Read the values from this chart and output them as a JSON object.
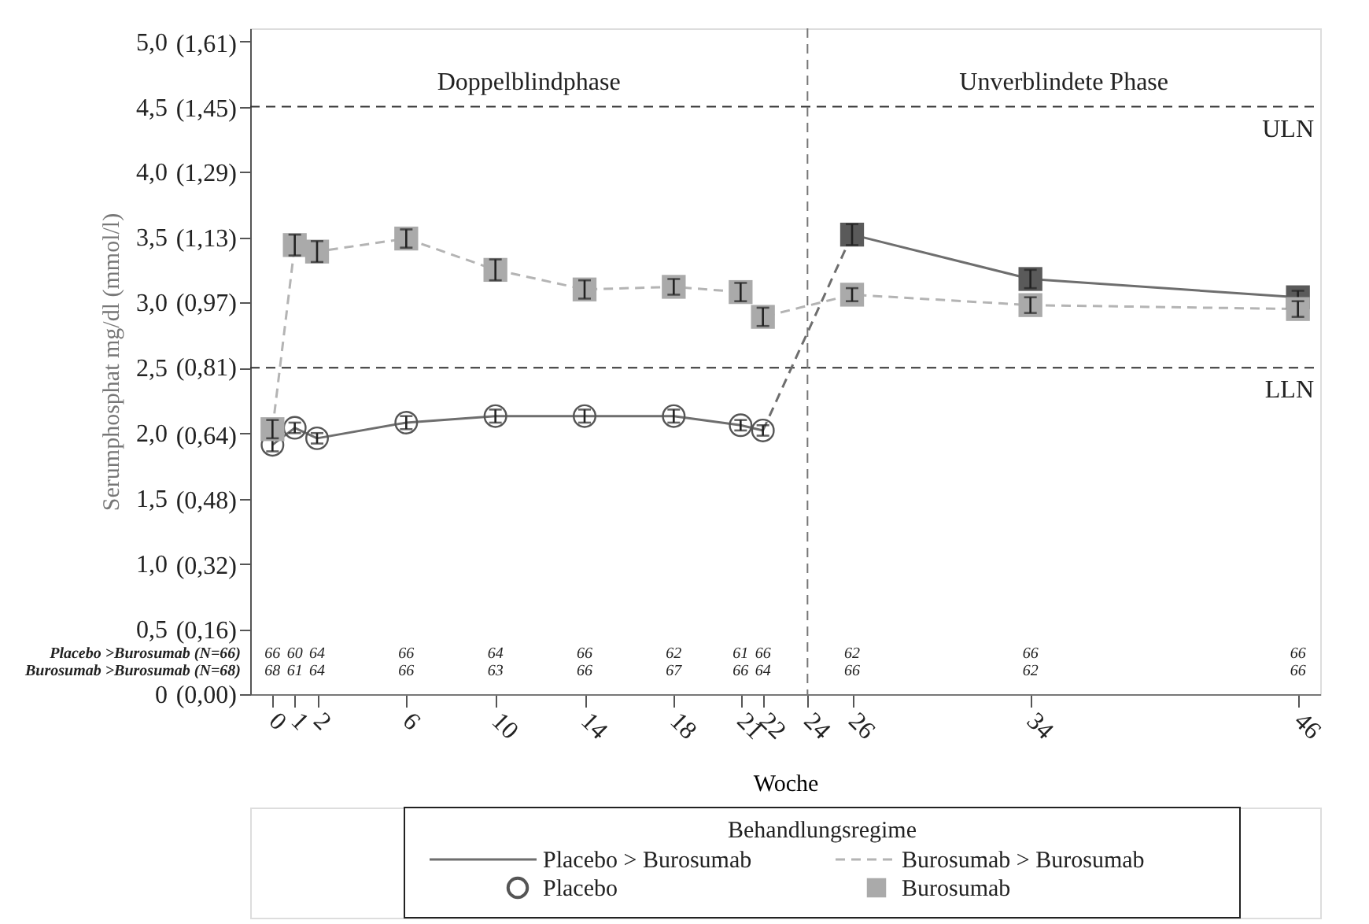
{
  "chart_data": {
    "type": "line",
    "xlabel": "Woche",
    "ylabel": "Serumphosphat mg/dl (mmol/l)",
    "legend_title": "Behandlungsregime",
    "xlim": [
      -1,
      47
    ],
    "ylim": [
      0,
      5.1
    ],
    "xticks": [
      0,
      1,
      2,
      6,
      10,
      14,
      18,
      21,
      22,
      24,
      26,
      34,
      46
    ],
    "yticks": [
      {
        "value": 0,
        "label": "0"
      },
      {
        "value": 0.5,
        "label": "0,5"
      },
      {
        "value": 1,
        "label": "1,0"
      },
      {
        "value": 1.5,
        "label": "1,5"
      },
      {
        "value": 2,
        "label": "2,0"
      },
      {
        "value": 2.5,
        "label": "2,5"
      },
      {
        "value": 3,
        "label": "3,0"
      },
      {
        "value": 3.5,
        "label": "3,5"
      },
      {
        "value": 4,
        "label": "4,0"
      },
      {
        "value": 4.5,
        "label": "4,5"
      },
      {
        "value": 5,
        "label": "5,0"
      }
    ],
    "y2lim": [
      0,
      1.647
    ],
    "y2ticks": [
      {
        "value": 0,
        "label": "(0,00)"
      },
      {
        "value": 0.16,
        "label": "(0,16)"
      },
      {
        "value": 0.32,
        "label": "(0,32)"
      },
      {
        "value": 0.48,
        "label": "(0,48)"
      },
      {
        "value": 0.64,
        "label": "(0,64)"
      },
      {
        "value": 0.81,
        "label": "(0,81)"
      },
      {
        "value": 0.97,
        "label": "(0,97)"
      },
      {
        "value": 1.13,
        "label": "(1,13)"
      },
      {
        "value": 1.29,
        "label": "(1,29)"
      },
      {
        "value": 1.45,
        "label": "(1,45)"
      },
      {
        "value": 1.61,
        "label": "(1,61)"
      }
    ],
    "legend": "bottom",
    "series": [
      {
        "name": "Placebo > Burosumab",
        "line_style": "solid",
        "marker": "none",
        "color": "#6e6e6e",
        "x": [
          0,
          1,
          2,
          6,
          10,
          14,
          18,
          21,
          22
        ],
        "values": [
          1.91,
          2.04,
          1.96,
          2.08,
          2.13,
          2.13,
          2.13,
          2.06,
          2.02
        ]
      },
      {
        "line_style": "dashed",
        "marker": "none",
        "color": "#6e6e6e",
        "x": [
          22,
          26
        ],
        "values": [
          2.02,
          3.52
        ]
      },
      {
        "line_style": "solid",
        "marker": "none",
        "color": "#6e6e6e",
        "x": [
          26,
          34,
          46
        ],
        "values": [
          3.52,
          3.18,
          3.04
        ]
      },
      {
        "name": "Burosumab > Burosumab",
        "line_style": "dashed",
        "marker": "none",
        "color": "#b4b4b4",
        "x": [
          0,
          1,
          2,
          6,
          10,
          14,
          18,
          21,
          22,
          26,
          34,
          46
        ],
        "values": [
          2.03,
          3.44,
          3.39,
          3.49,
          3.25,
          3.1,
          3.12,
          3.08,
          2.89,
          3.06,
          2.98,
          2.95
        ]
      },
      {
        "name": "Placebo",
        "type": "scatter",
        "marker": "circle",
        "color": "#555555",
        "x": [
          0,
          1,
          2,
          6,
          10,
          14,
          18,
          21,
          22
        ],
        "values": [
          1.91,
          2.04,
          1.96,
          2.08,
          2.13,
          2.13,
          2.13,
          2.06,
          2.02
        ],
        "errors": [
          0.05,
          0.04,
          0.04,
          0.05,
          0.05,
          0.05,
          0.05,
          0.04,
          0.04
        ]
      },
      {
        "type": "scatter",
        "marker": "square",
        "color": "#5a5a5a",
        "x": [
          26,
          34,
          46
        ],
        "values": [
          3.52,
          3.18,
          3.04
        ],
        "errors": [
          0.08,
          0.07,
          0.05
        ]
      },
      {
        "name": "Burosumab",
        "type": "scatter",
        "marker": "square",
        "color": "#aaaaaa",
        "x": [
          0,
          1,
          2,
          6,
          10,
          14,
          18,
          21,
          22,
          26,
          34,
          46
        ],
        "values": [
          2.03,
          3.44,
          3.39,
          3.49,
          3.25,
          3.1,
          3.12,
          3.08,
          2.89,
          3.06,
          2.98,
          2.95
        ],
        "errors": [
          0.07,
          0.08,
          0.08,
          0.07,
          0.08,
          0.07,
          0.06,
          0.07,
          0.07,
          0.05,
          0.06,
          0.06
        ]
      }
    ],
    "ref_lines": [
      {
        "axis": "y",
        "value": 4.5,
        "label": "ULN",
        "line_style": "dashed",
        "color": "#333333"
      },
      {
        "axis": "y",
        "value": 2.5,
        "label": "LLN",
        "line_style": "dashed",
        "color": "#333333"
      },
      {
        "axis": "x",
        "value": 24,
        "line_style": "dashed",
        "color": "#777777"
      }
    ],
    "annotations": [
      "Doppelblindphase",
      "Unverblindete Phase",
      "Placebo  >Burosumab (N=66)",
      "66 60 64 66 64 66 62 61 66 62 66 66",
      "Burosumab >Burosumab (N=68)",
      "68 61 64 66 63 66 67 66 64 66 62 66"
    ]
  }
}
